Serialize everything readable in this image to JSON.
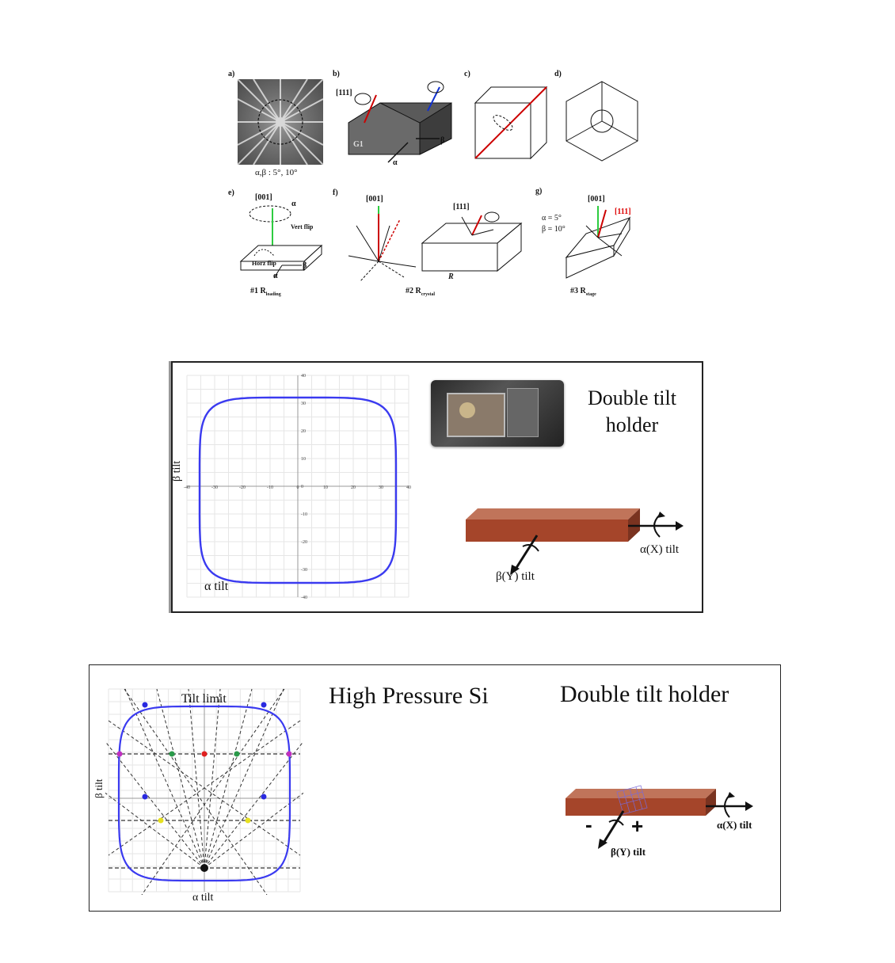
{
  "top_figure": {
    "labels": {
      "a": "a)",
      "b": "b)",
      "c": "c)",
      "d": "d)",
      "e": "e)",
      "f": "f)",
      "g": "g)"
    },
    "a_caption": "α,β : 5°, 10°",
    "b_dir": "[111]",
    "b_block": "G1",
    "b_alpha": "α",
    "b_beta": "β",
    "e_dir": "[001]",
    "e_vert": "Vert flip",
    "e_horz": "Horz flip",
    "e_alpha": "α",
    "e_beta": "β",
    "e_caption": "#1 R",
    "e_caption_sub": "loading",
    "f_dir1": "[001]",
    "f_dir2": "[111]",
    "f_caption": "#2 R",
    "f_caption_sub": "crystal",
    "f_block_label": "R",
    "g_dir1": "[001]",
    "g_dir2": "[111]",
    "g_alpha_val": "α = 5°",
    "g_beta_val": "β = 10°",
    "g_caption": "#3 R",
    "g_caption_sub": "stage"
  },
  "middle_panel": {
    "title_line1": "Double tilt",
    "title_line2": "holder",
    "x_label": "α tilt",
    "y_label": "β tilt",
    "alpha_label": "α(X) tilt",
    "beta_label": "β(Y) tilt",
    "x_ticks": [
      "-40",
      "-30",
      "-20",
      "-10",
      "0",
      "10",
      "20",
      "30",
      "40"
    ],
    "y_ticks": [
      "40",
      "30",
      "20",
      "10",
      "0",
      "-10",
      "-20",
      "-30",
      "-40"
    ],
    "curve_color": "#3a3af0"
  },
  "bottom_panel": {
    "title_left": "High Pressure Si",
    "title_right": "Double tilt holder",
    "tilt_limit": "Tilt limit",
    "x_label": "α tilt",
    "y_label": "β tilt",
    "alpha_label": "α(X) tilt",
    "beta_label": "β(Y) tilt",
    "minus": "-",
    "plus": "+",
    "curve_color": "#3a3af0"
  }
}
